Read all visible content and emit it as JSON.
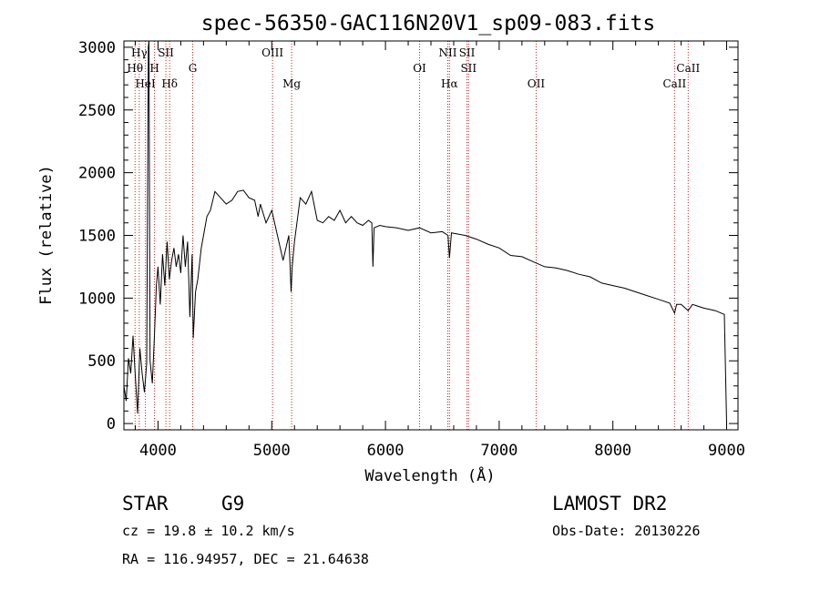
{
  "chart_data": {
    "type": "line",
    "title": "spec-56350-GAC116N20V1_sp09-083.fits",
    "xlabel": "Wavelength (Å)",
    "ylabel": "Flux (relative)",
    "xlim": [
      3700,
      9100
    ],
    "ylim": [
      -50,
      3050
    ],
    "xticks": [
      4000,
      5000,
      6000,
      7000,
      8000,
      9000
    ],
    "xtick_labels": [
      "4000",
      "5000",
      "6000",
      "7000",
      "8000",
      "9000"
    ],
    "yticks": [
      0,
      500,
      1000,
      1500,
      2000,
      2500,
      3000
    ],
    "ytick_labels": [
      "0",
      "500",
      "1000",
      "1500",
      "2000",
      "2500",
      "3000"
    ],
    "grid": false,
    "line_color": "#000000",
    "marker_color": "#cc2222",
    "spectral_lines": [
      {
        "label": "Hγ",
        "wavelength": 3835,
        "row": 0
      },
      {
        "label": "Hθ",
        "wavelength": 3798,
        "row": 1
      },
      {
        "label": "HeI",
        "wavelength": 3889,
        "row": 2
      },
      {
        "label": "SII",
        "wavelength": 4069,
        "row": 0
      },
      {
        "label": "H",
        "wavelength": 3969,
        "row": 1
      },
      {
        "label": "Hδ",
        "wavelength": 4102,
        "row": 2
      },
      {
        "label": "G",
        "wavelength": 4305,
        "row": 1
      },
      {
        "label": "OIII",
        "wavelength": 5007,
        "row": 0
      },
      {
        "label": "Mg",
        "wavelength": 5175,
        "row": 2
      },
      {
        "label": "OI",
        "wavelength": 6300,
        "row": 1
      },
      {
        "label": "NII",
        "wavelength": 6548,
        "row": 0
      },
      {
        "label": "Hα",
        "wavelength": 6563,
        "row": 2
      },
      {
        "label": "SII",
        "wavelength": 6717,
        "row": 0
      },
      {
        "label": "SII",
        "wavelength": 6731,
        "row": 1
      },
      {
        "label": "OII",
        "wavelength": 7325,
        "row": 2
      },
      {
        "label": "CaII",
        "wavelength": 8542,
        "row": 2
      },
      {
        "label": "CaII",
        "wavelength": 8662,
        "row": 1
      }
    ],
    "series": [
      {
        "x": [
          3700,
          3720,
          3740,
          3760,
          3780,
          3800,
          3820,
          3840,
          3860,
          3880,
          3900,
          3915,
          3920,
          3930,
          3950,
          3968,
          3985,
          4000,
          4020,
          4040,
          4060,
          4080,
          4100,
          4120,
          4140,
          4160,
          4180,
          4200,
          4220,
          4240,
          4260,
          4280,
          4300,
          4310,
          4330,
          4350,
          4380,
          4400,
          4430,
          4460,
          4500,
          4550,
          4600,
          4650,
          4700,
          4750,
          4800,
          4850,
          4880,
          4900,
          4950,
          5000,
          5050,
          5100,
          5150,
          5170,
          5180,
          5200,
          5250,
          5300,
          5350,
          5400,
          5450,
          5500,
          5550,
          5600,
          5650,
          5700,
          5750,
          5800,
          5850,
          5880,
          5890,
          5900,
          5950,
          6000,
          6100,
          6200,
          6300,
          6400,
          6500,
          6550,
          6563,
          6580,
          6700,
          6800,
          6900,
          7000,
          7100,
          7200,
          7300,
          7400,
          7500,
          7600,
          7700,
          7800,
          7900,
          8000,
          8100,
          8200,
          8300,
          8400,
          8500,
          8542,
          8560,
          8600,
          8662,
          8700,
          8800,
          8900,
          8980,
          9000
        ],
        "y": [
          300,
          180,
          520,
          400,
          700,
          380,
          80,
          600,
          400,
          250,
          480,
          3000,
          3050,
          500,
          320,
          700,
          1100,
          1250,
          950,
          1350,
          1100,
          1450,
          1150,
          1300,
          1400,
          1250,
          1350,
          1200,
          1500,
          1250,
          1450,
          850,
          1350,
          680,
          1050,
          1150,
          1400,
          1500,
          1650,
          1700,
          1850,
          1800,
          1750,
          1780,
          1850,
          1860,
          1800,
          1780,
          1650,
          1750,
          1600,
          1700,
          1500,
          1300,
          1500,
          1050,
          1250,
          1450,
          1800,
          1750,
          1850,
          1620,
          1600,
          1650,
          1620,
          1700,
          1600,
          1650,
          1600,
          1580,
          1620,
          1600,
          1250,
          1560,
          1580,
          1570,
          1560,
          1540,
          1560,
          1520,
          1530,
          1500,
          1320,
          1520,
          1500,
          1470,
          1430,
          1400,
          1340,
          1330,
          1290,
          1250,
          1240,
          1220,
          1190,
          1170,
          1120,
          1100,
          1080,
          1050,
          1020,
          990,
          960,
          880,
          950,
          950,
          900,
          950,
          920,
          900,
          870,
          0
        ]
      }
    ]
  },
  "info": {
    "object_class": "STAR",
    "subclass": "G9",
    "survey": "LAMOST DR2",
    "redshift_text": "cz = 19.8 ± 10.2 km/s",
    "obs_date_text": "Obs-Date: 20130226",
    "coords_text": "RA = 116.94957, DEC =  21.64638"
  }
}
